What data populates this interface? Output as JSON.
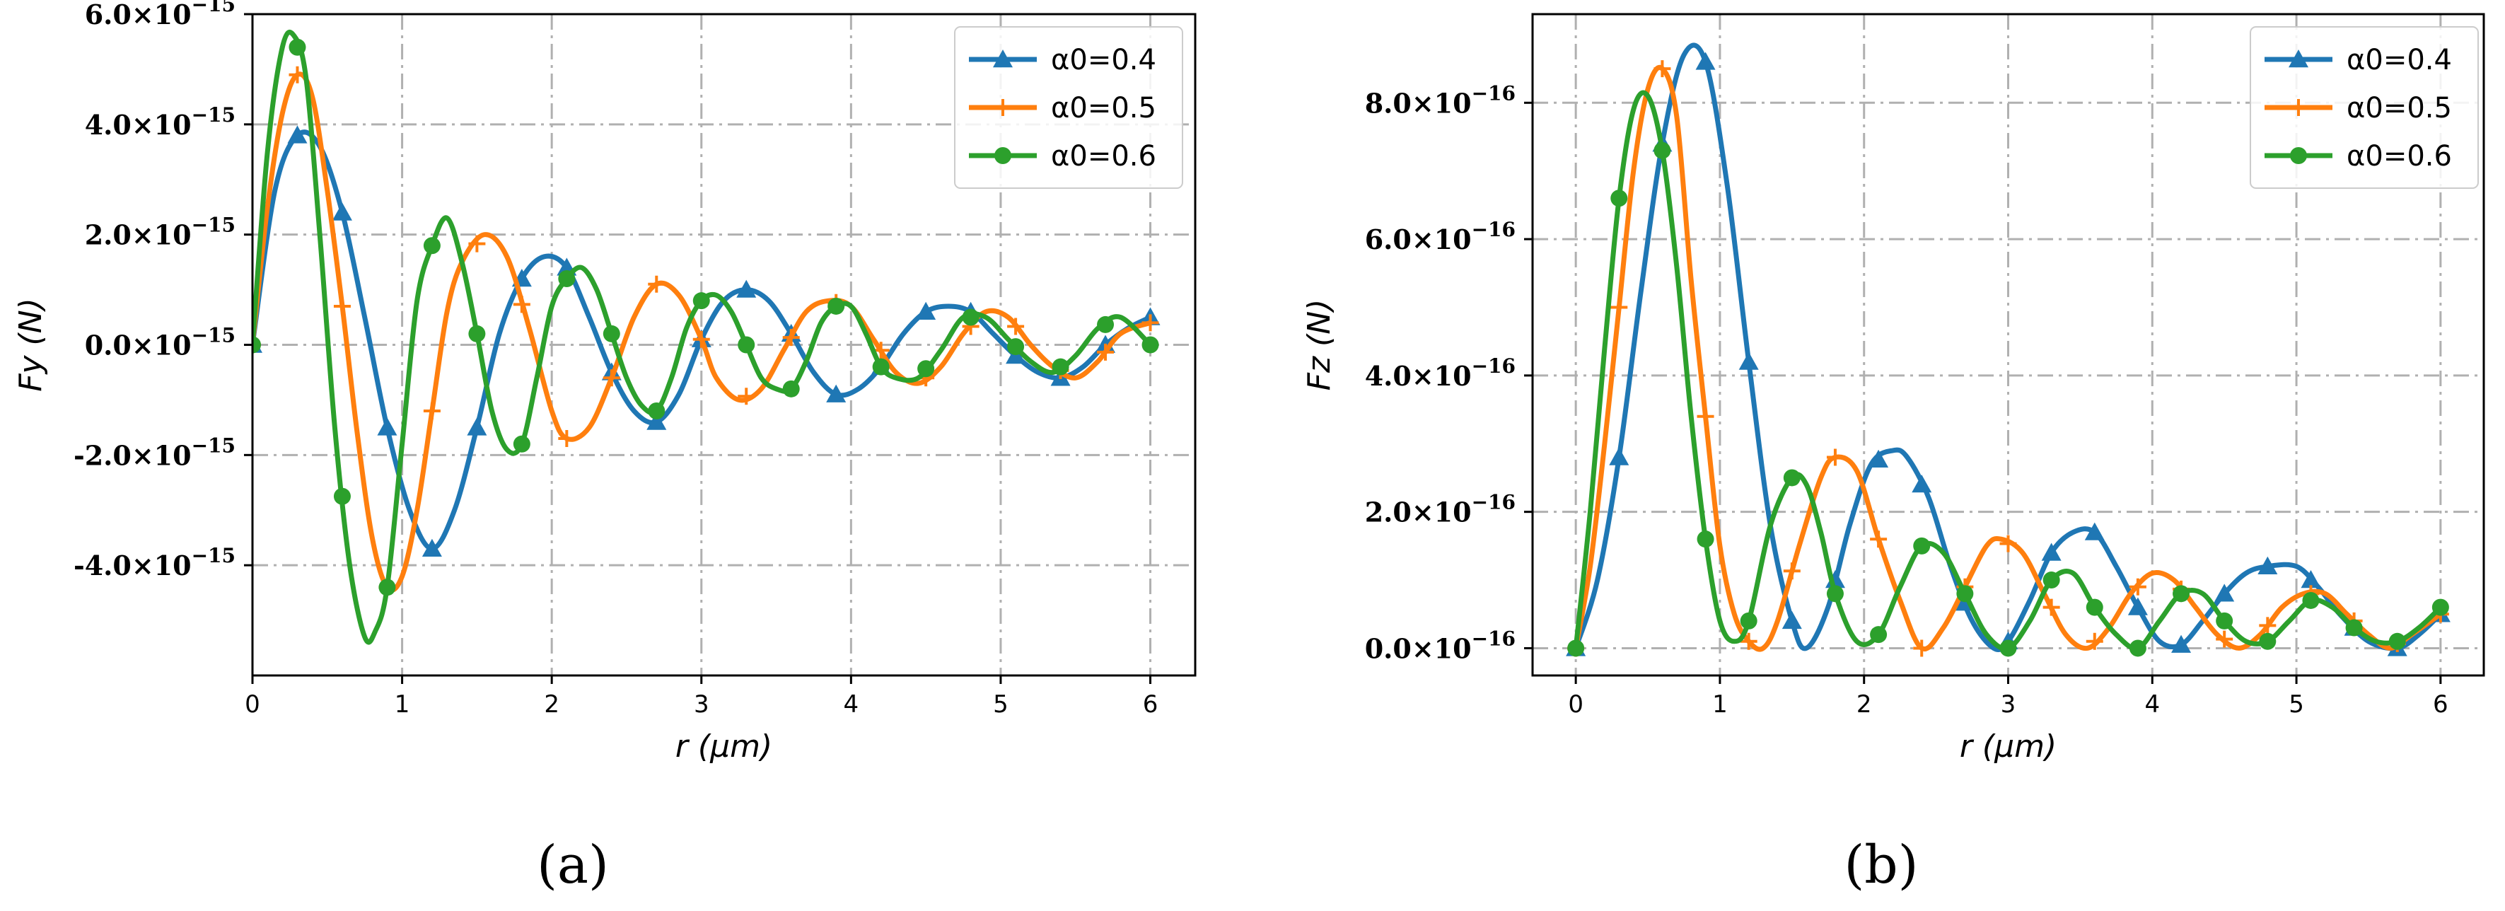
{
  "chart_data": [
    {
      "type": "line",
      "caption": "(a)",
      "xlabel": "r (μm)",
      "ylabel": "Fy (N)",
      "xlim": [
        0,
        6.3
      ],
      "ylim": [
        -6e-15,
        6e-15
      ],
      "x_ticks": [
        0,
        1,
        2,
        3,
        4,
        5,
        6
      ],
      "x_tick_labels": [
        "0",
        "1",
        "2",
        "3",
        "4",
        "5",
        "6"
      ],
      "y_ticks": [
        -4e-15,
        -2e-15,
        0,
        2e-15,
        4e-15,
        6e-15
      ],
      "y_tick_labels": [
        "-4.0×10−15",
        "-2.0×10−15",
        "0.0×10−15",
        "2.0×10−15",
        "4.0×10−15",
        "6.0×10−15"
      ],
      "grid": true,
      "legend_position": "top-right",
      "series": [
        {
          "name": "α0=0.4",
          "color": "#1f77b4",
          "marker": "triangle",
          "x": [
            0,
            0.15,
            0.3,
            0.45,
            0.6,
            0.75,
            0.9,
            1.05,
            1.2,
            1.35,
            1.5,
            1.65,
            1.8,
            1.95,
            2.1,
            2.25,
            2.4,
            2.55,
            2.7,
            2.85,
            3.0,
            3.15,
            3.3,
            3.45,
            3.6,
            3.75,
            3.9,
            4.05,
            4.2,
            4.35,
            4.5,
            4.65,
            4.8,
            4.95,
            5.1,
            5.25,
            5.4,
            5.55,
            5.7,
            5.85,
            6.0
          ],
          "y": [
            0,
            2.8e-15,
            3.8e-15,
            3.6e-15,
            2.4e-15,
            5e-16,
            -1.5e-15,
            -3e-15,
            -3.7e-15,
            -3e-15,
            -1.5e-15,
            2e-16,
            1.2e-15,
            1.6e-15,
            1.4e-15,
            5e-16,
            -5e-16,
            -1.2e-15,
            -1.4e-15,
            -9e-16,
            1e-16,
            8e-16,
            1e-15,
            8e-16,
            2e-16,
            -5e-16,
            -9e-16,
            -8e-16,
            -4e-16,
            2e-16,
            6e-16,
            7e-16,
            6e-16,
            2e-16,
            -2e-16,
            -5e-16,
            -6e-16,
            -4e-16,
            0.0,
            3e-16,
            5e-16
          ],
          "marker_x": [
            0,
            0.3,
            0.6,
            0.9,
            1.2,
            1.5,
            1.8,
            2.1,
            2.4,
            2.7,
            3.0,
            3.3,
            3.6,
            3.9,
            4.2,
            4.5,
            4.8,
            5.1,
            5.4,
            5.7,
            6.0
          ]
        },
        {
          "name": "α0=0.5",
          "color": "#ff7f0e",
          "marker": "plus",
          "x": [
            0,
            0.1,
            0.2,
            0.3,
            0.4,
            0.5,
            0.6,
            0.7,
            0.8,
            0.9,
            1.0,
            1.1,
            1.2,
            1.3,
            1.4,
            1.55,
            1.7,
            1.85,
            2.0,
            2.1,
            2.25,
            2.4,
            2.55,
            2.7,
            2.85,
            3.0,
            3.1,
            3.25,
            3.4,
            3.55,
            3.7,
            3.85,
            4.0,
            4.15,
            4.3,
            4.45,
            4.6,
            4.75,
            4.9,
            5.05,
            5.2,
            5.35,
            5.5,
            5.65,
            5.8,
            6.0
          ],
          "y": [
            0,
            2.5e-15,
            4.2e-15,
            4.9e-15,
            4.5e-15,
            2.8e-15,
            7e-16,
            -1.6e-15,
            -3.5e-15,
            -4.4e-15,
            -4.2e-15,
            -3e-15,
            -1.2e-15,
            6e-16,
            1.5e-15,
            2e-15,
            1.6e-15,
            3e-16,
            -1.2e-15,
            -1.7e-15,
            -1.5e-15,
            -6e-16,
            5e-16,
            1.1e-15,
            9e-16,
            1e-16,
            -6e-16,
            -1e-15,
            -8e-16,
            -1e-16,
            6e-16,
            8e-16,
            7e-16,
            1e-16,
            -5e-16,
            -7e-16,
            -4e-16,
            2e-16,
            6e-16,
            5e-16,
            0.0,
            -4e-16,
            -6e-16,
            -3e-16,
            2e-16,
            4e-16
          ],
          "marker_x": [
            0,
            0.3,
            0.6,
            0.9,
            1.2,
            1.5,
            1.8,
            2.1,
            2.4,
            2.7,
            3.0,
            3.3,
            3.6,
            3.9,
            4.2,
            4.5,
            4.8,
            5.1,
            5.4,
            5.7,
            6.0
          ]
        },
        {
          "name": "α0=0.6",
          "color": "#2ca02c",
          "marker": "circle",
          "x": [
            0,
            0.1,
            0.2,
            0.28,
            0.36,
            0.45,
            0.55,
            0.65,
            0.75,
            0.82,
            0.9,
            1.0,
            1.1,
            1.2,
            1.3,
            1.4,
            1.5,
            1.6,
            1.7,
            1.8,
            1.9,
            2.0,
            2.1,
            2.2,
            2.3,
            2.4,
            2.5,
            2.6,
            2.7,
            2.8,
            2.9,
            3.0,
            3.1,
            3.2,
            3.3,
            3.4,
            3.5,
            3.6,
            3.7,
            3.8,
            3.9,
            4.0,
            4.1,
            4.2,
            4.3,
            4.45,
            4.6,
            4.75,
            4.9,
            5.05,
            5.2,
            5.35,
            5.5,
            5.65,
            5.8,
            6.0
          ],
          "y": [
            0,
            3.5e-15,
            5.4e-15,
            5.6e-15,
            4.8e-15,
            2e-15,
            -1.5e-15,
            -4e-15,
            -5.3e-15,
            -5.2e-15,
            -4.4e-15,
            -1.8e-15,
            8e-16,
            1.8e-15,
            2.3e-15,
            1.5e-15,
            2e-16,
            -1.2e-15,
            -1.9e-15,
            -1.8e-15,
            -6e-16,
            7e-16,
            1.2e-15,
            1.4e-15,
            1e-15,
            2e-16,
            -6e-16,
            -1.1e-15,
            -1.2e-15,
            -6e-16,
            3e-16,
            8e-16,
            9e-16,
            6e-16,
            0.0,
            -6e-16,
            -8e-16,
            -8e-16,
            -3e-16,
            4e-16,
            7e-16,
            7e-16,
            2e-16,
            -4e-16,
            -6e-16,
            -6e-16,
            -1e-16,
            5e-16,
            5e-16,
            1e-16,
            -3e-16,
            -5e-16,
            -2e-16,
            3e-16,
            5e-16,
            0.0
          ],
          "marker_x": [
            0,
            0.3,
            0.6,
            0.9,
            1.2,
            1.5,
            1.8,
            2.1,
            2.4,
            2.7,
            3.0,
            3.3,
            3.6,
            3.9,
            4.2,
            4.5,
            4.8,
            5.1,
            5.4,
            5.7,
            6.0
          ]
        }
      ]
    },
    {
      "type": "line",
      "caption": "(b)",
      "xlabel": "r (μm)",
      "ylabel": "Fz (N)",
      "xlim": [
        -0.3,
        6.3
      ],
      "ylim": [
        -4e-17,
        9.3e-16
      ],
      "x_ticks": [
        0,
        1,
        2,
        3,
        4,
        5,
        6
      ],
      "x_tick_labels": [
        "0",
        "1",
        "2",
        "3",
        "4",
        "5",
        "6"
      ],
      "y_ticks": [
        0,
        2e-16,
        4e-16,
        6e-16,
        8e-16
      ],
      "y_tick_labels": [
        "0.0×10−16",
        "2.0×10−16",
        "4.0×10−16",
        "6.0×10−16",
        "8.0×10−16"
      ],
      "grid": true,
      "legend_position": "top-right",
      "series": [
        {
          "name": "α0=0.4",
          "color": "#1f77b4",
          "marker": "triangle",
          "x": [
            0,
            0.15,
            0.3,
            0.45,
            0.6,
            0.75,
            0.9,
            1.05,
            1.2,
            1.35,
            1.5,
            1.6,
            1.75,
            1.9,
            2.05,
            2.2,
            2.3,
            2.45,
            2.6,
            2.75,
            2.9,
            3.0,
            3.15,
            3.3,
            3.45,
            3.6,
            3.75,
            3.9,
            4.05,
            4.2,
            4.35,
            4.5,
            4.65,
            4.8,
            5.0,
            5.15,
            5.3,
            5.5,
            5.7,
            5.85,
            6.0
          ],
          "y": [
            0,
            1e-16,
            2.8e-16,
            5.2e-16,
            7.4e-16,
            8.7e-16,
            8.6e-16,
            6.8e-16,
            4.2e-16,
            1.8e-16,
            4e-17,
            0.0,
            6e-17,
            1.8e-16,
            2.7e-16,
            2.9e-16,
            2.8e-16,
            2.2e-16,
            1.2e-16,
            4e-17,
            0.0,
            1e-17,
            7e-17,
            1.4e-16,
            1.7e-16,
            1.7e-16,
            1.2e-16,
            6e-17,
            1e-17,
            5e-18,
            4e-17,
            8e-17,
            1.1e-16,
            1.2e-16,
            1.2e-16,
            9e-17,
            5e-17,
            1e-17,
            0.0,
            2e-17,
            5e-17
          ],
          "marker_x": [
            0,
            0.3,
            0.6,
            0.9,
            1.2,
            1.5,
            1.8,
            2.1,
            2.4,
            2.7,
            3.0,
            3.3,
            3.6,
            3.9,
            4.2,
            4.5,
            4.8,
            5.1,
            5.4,
            5.7,
            6.0
          ]
        },
        {
          "name": "α0=0.5",
          "color": "#ff7f0e",
          "marker": "plus",
          "x": [
            0,
            0.1,
            0.2,
            0.3,
            0.4,
            0.5,
            0.6,
            0.7,
            0.8,
            0.9,
            1.0,
            1.1,
            1.2,
            1.3,
            1.4,
            1.55,
            1.7,
            1.8,
            1.95,
            2.1,
            2.25,
            2.4,
            2.55,
            2.7,
            2.85,
            2.95,
            3.1,
            3.25,
            3.4,
            3.55,
            3.7,
            3.85,
            4.0,
            4.15,
            4.3,
            4.45,
            4.6,
            4.75,
            4.9,
            5.05,
            5.2,
            5.35,
            5.5,
            5.65,
            5.8,
            6.0
          ],
          "y": [
            0,
            1.2e-16,
            3e-16,
            5e-16,
            7e-16,
            8.2e-16,
            8.5e-16,
            7.8e-16,
            5.4e-16,
            3.4e-16,
            1.5e-16,
            5e-17,
            1e-17,
            0.0,
            4e-17,
            1.5e-16,
            2.5e-16,
            2.8e-16,
            2.6e-16,
            1.6e-16,
            7e-17,
            0.0,
            3e-17,
            9e-17,
            1.5e-16,
            1.6e-16,
            1.4e-16,
            8e-17,
            2e-17,
            0.0,
            3e-17,
            8e-17,
            1.1e-16,
            1e-16,
            6e-17,
            2e-17,
            0.0,
            2e-17,
            6e-17,
            8e-17,
            8e-17,
            5e-17,
            2e-17,
            0.0,
            2e-17,
            5e-17
          ],
          "marker_x": [
            0,
            0.3,
            0.6,
            0.9,
            1.2,
            1.5,
            1.8,
            2.1,
            2.4,
            2.7,
            3.0,
            3.3,
            3.6,
            3.9,
            4.2,
            4.5,
            4.8,
            5.1,
            5.4,
            5.7,
            6.0
          ]
        },
        {
          "name": "α0=0.6",
          "color": "#2ca02c",
          "marker": "circle",
          "x": [
            0,
            0.1,
            0.2,
            0.3,
            0.4,
            0.5,
            0.6,
            0.7,
            0.8,
            0.9,
            1.0,
            1.1,
            1.2,
            1.35,
            1.5,
            1.6,
            1.7,
            1.8,
            1.95,
            2.1,
            2.25,
            2.4,
            2.55,
            2.7,
            2.85,
            3.0,
            3.15,
            3.3,
            3.45,
            3.6,
            3.75,
            3.9,
            4.05,
            4.2,
            4.35,
            4.5,
            4.65,
            4.8,
            4.95,
            5.1,
            5.25,
            5.4,
            5.55,
            5.7,
            5.85,
            6.0
          ],
          "y": [
            0,
            2e-16,
            4.4e-16,
            6.6e-16,
            7.9e-16,
            8.1e-16,
            7.3e-16,
            5.6e-16,
            3.4e-16,
            1.6e-16,
            4e-17,
            1e-17,
            4e-17,
            1.8e-16,
            2.5e-16,
            2.4e-16,
            1.7e-16,
            8e-17,
            1e-17,
            2e-17,
            9e-17,
            1.5e-16,
            1.4e-16,
            8e-17,
            2e-17,
            0.0,
            4e-17,
            1e-16,
            1.1e-16,
            6e-17,
            2e-17,
            0.0,
            4e-17,
            8e-17,
            8e-17,
            4e-17,
            1e-17,
            1e-17,
            4e-17,
            7e-17,
            6e-17,
            3e-17,
            1e-17,
            1e-17,
            3e-17,
            6e-17
          ],
          "marker_x": [
            0,
            0.3,
            0.6,
            0.9,
            1.2,
            1.5,
            1.8,
            2.1,
            2.4,
            2.7,
            3.0,
            3.3,
            3.6,
            3.9,
            4.2,
            4.5,
            4.8,
            5.1,
            5.4,
            5.7,
            6.0
          ]
        }
      ]
    }
  ]
}
